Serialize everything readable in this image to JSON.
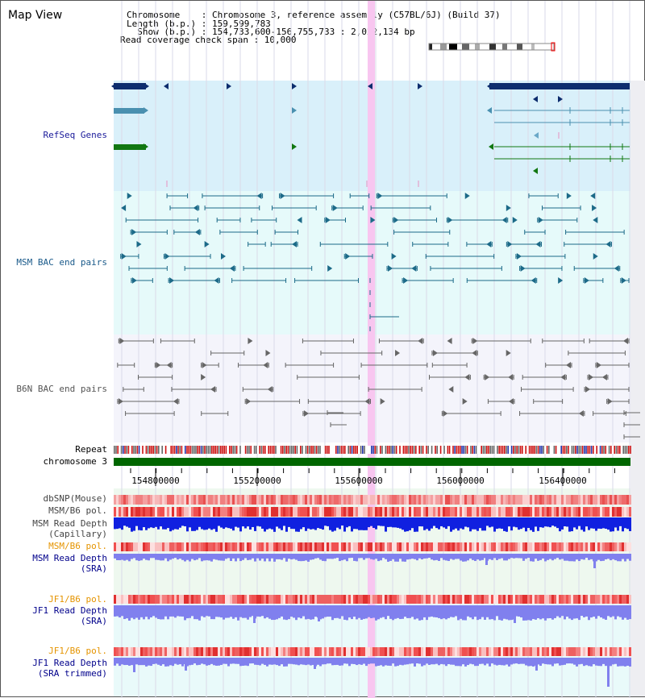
{
  "header": {
    "title": "Map View",
    "info_lines": [
      "Chromosome    : Chromosome 3, reference assembly (C57BL/6J) (Build 37)",
      "Length (b.p.) : 159,599,783",
      "  Show (b.p.) : 154,733,600-156,755,733 : 2,022,134 bp",
      "Read coverage check span : 10,000"
    ]
  },
  "tracks": {
    "refseq": "RefSeq Genes",
    "msm_bac": "MSM BAC end pairs",
    "b6n_bac": "B6N BAC end pairs",
    "repeat": "Repeat",
    "chromosome": "chromosome 3",
    "dbsnp": "dbSNP(Mouse)",
    "msm_b6_pol": "MSM/B6 pol.",
    "msm_read_depth_cap_1": "MSM Read Depth",
    "msm_read_depth_cap_2": "(Capillary)",
    "msm_b6_pol_2": "MSM/B6 pol.",
    "msm_read_depth_sra_1": "MSM Read Depth",
    "msm_read_depth_sra_2": "(SRA)",
    "jf1_b6_pol": "JF1/B6 pol.",
    "jf1_read_depth_sra_1": "JF1 Read Depth",
    "jf1_read_depth_sra_2": "(SRA)",
    "jf1_b6_pol_2": "JF1/B6 pol.",
    "jf1_read_depth_trim_1": "JF1 Read Depth",
    "jf1_read_depth_trim_2": "(SRA trimmed)"
  },
  "axis": {
    "ticks": [
      "154800000",
      "155200000",
      "155600000",
      "156000000",
      "156400000"
    ]
  },
  "colors": {
    "refseq_bg": "#d9f0fa",
    "bac_bg": "#e6fafa",
    "highlight": "#f8c6f0",
    "refseq_navy": "#0d2d6e",
    "refseq_teal": "#4a90b0",
    "refseq_green": "#117711",
    "chrom_green": "#006600",
    "depth_blue": "#1020e0",
    "depth_lavender": "#8080ee",
    "label_navy": "#00008b",
    "label_orange": "#e59400",
    "label_teal": "#1a5a8a"
  }
}
